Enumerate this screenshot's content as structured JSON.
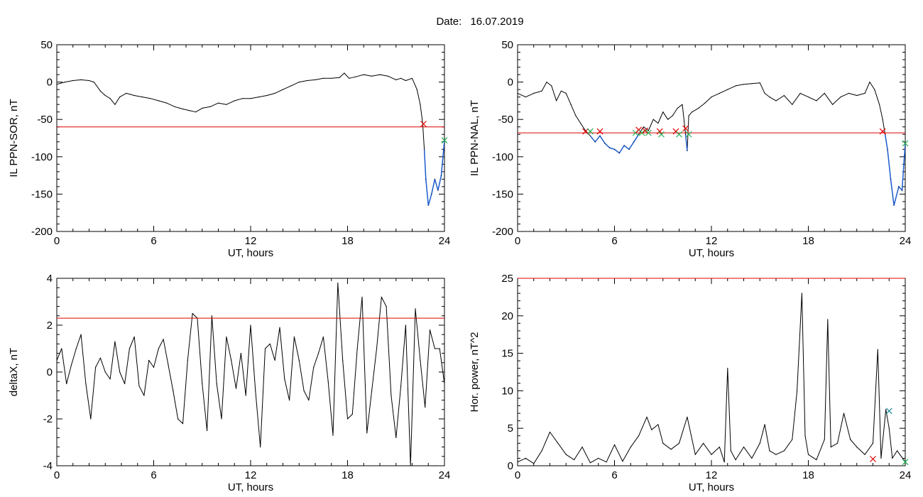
{
  "figure": {
    "title_prefix": "Date:",
    "date": "16.07.2019"
  },
  "colors": {
    "trace": "#000000",
    "threshold": "#e00000",
    "below_threshold": "#1f5fd0",
    "marker_red": "#e00000",
    "marker_green": "#20b050",
    "marker_teal": "#2090a0"
  },
  "chart_data": [
    {
      "id": "ppn_sor",
      "type": "line",
      "title": "",
      "xlabel": "UT, hours",
      "ylabel": "IL PPN-SOR, nT",
      "xlim": [
        0,
        24
      ],
      "ylim": [
        -200,
        50
      ],
      "xticks": [
        0,
        6,
        12,
        18,
        24
      ],
      "yticks": [
        -200,
        -150,
        -100,
        -50,
        0,
        50
      ],
      "threshold": -60,
      "series": [
        {
          "x": [
            0,
            0.5,
            1,
            1.5,
            2,
            2.3,
            2.7,
            3.0,
            3.3,
            3.6,
            3.9,
            4.3,
            4.8,
            5.3,
            5.8,
            6.3,
            6.8,
            7.3,
            7.8,
            8.2,
            8.6,
            9.0,
            9.5,
            10.0,
            10.5,
            11.0,
            11.5,
            12.0,
            12.5,
            13.0,
            13.5,
            14.0,
            14.5,
            15.0,
            15.5,
            16.0,
            16.5,
            17.0,
            17.5,
            17.8,
            18.1,
            18.5,
            19.0,
            19.5,
            20.0,
            20.5,
            21.0,
            21.3,
            21.6,
            22.0,
            22.3,
            22.5,
            22.65,
            22.75,
            22.85,
            23.0,
            23.2,
            23.4,
            23.6,
            23.8,
            24.0
          ],
          "y": [
            -3,
            0,
            2,
            3,
            2,
            0,
            -12,
            -18,
            -22,
            -30,
            -20,
            -15,
            -18,
            -20,
            -22,
            -25,
            -28,
            -33,
            -36,
            -38,
            -40,
            -35,
            -33,
            -28,
            -30,
            -25,
            -22,
            -22,
            -20,
            -18,
            -15,
            -10,
            -5,
            0,
            2,
            3,
            5,
            5,
            6,
            12,
            5,
            7,
            10,
            8,
            10,
            8,
            3,
            5,
            2,
            5,
            -10,
            -30,
            -55,
            -90,
            -130,
            -165,
            -150,
            -130,
            -145,
            -125,
            -78
          ]
        }
      ],
      "crossings": [
        {
          "x": 22.7,
          "y": -56,
          "color": "red"
        },
        {
          "x": 24.0,
          "y": -78,
          "color": "green"
        }
      ]
    },
    {
      "id": "ppn_nal",
      "type": "line",
      "title": "",
      "xlabel": "UT, hours",
      "ylabel": "IL PPN-NAL, nT",
      "xlim": [
        0,
        24
      ],
      "ylim": [
        -200,
        50
      ],
      "xticks": [
        0,
        6,
        12,
        18,
        24
      ],
      "yticks": [
        -200,
        -150,
        -100,
        -50,
        0,
        50
      ],
      "threshold": -68,
      "series": [
        {
          "x": [
            0,
            0.5,
            1.0,
            1.5,
            1.8,
            2.1,
            2.4,
            2.7,
            3.0,
            3.3,
            3.6,
            3.9,
            4.2,
            4.5,
            4.8,
            5.1,
            5.4,
            5.7,
            6.0,
            6.3,
            6.6,
            6.9,
            7.2,
            7.5,
            7.8,
            8.1,
            8.4,
            8.7,
            9.0,
            9.3,
            9.6,
            9.9,
            10.2,
            10.4,
            10.5,
            10.6,
            10.8,
            11.2,
            11.6,
            12.0,
            12.5,
            13.0,
            13.5,
            14.0,
            14.5,
            15.0,
            15.3,
            15.6,
            16.0,
            16.5,
            17.0,
            17.5,
            18.0,
            18.5,
            19.0,
            19.5,
            20.0,
            20.5,
            21.0,
            21.5,
            21.8,
            22.1,
            22.4,
            22.6,
            22.75,
            22.9,
            23.1,
            23.3,
            23.6,
            23.8,
            24.0
          ],
          "y": [
            -15,
            -20,
            -15,
            -12,
            0,
            -5,
            -25,
            -12,
            -15,
            -30,
            -45,
            -55,
            -65,
            -72,
            -80,
            -72,
            -82,
            -88,
            -90,
            -95,
            -85,
            -90,
            -80,
            -70,
            -60,
            -65,
            -50,
            -55,
            -40,
            -50,
            -45,
            -35,
            -30,
            -70,
            -92,
            -45,
            -40,
            -35,
            -28,
            -20,
            -15,
            -10,
            -5,
            -3,
            -2,
            -1,
            -15,
            -20,
            -25,
            -18,
            -30,
            -15,
            -20,
            -25,
            -15,
            -30,
            -20,
            -15,
            -18,
            -15,
            0,
            -10,
            -30,
            -50,
            -70,
            -90,
            -130,
            -165,
            -140,
            -145,
            -82
          ]
        }
      ],
      "crossings": [
        {
          "x": 4.2,
          "y": -66,
          "color": "red"
        },
        {
          "x": 4.5,
          "y": -66,
          "color": "green"
        },
        {
          "x": 5.1,
          "y": -66,
          "color": "red"
        },
        {
          "x": 7.3,
          "y": -68,
          "color": "green"
        },
        {
          "x": 7.5,
          "y": -64,
          "color": "red"
        },
        {
          "x": 7.7,
          "y": -68,
          "color": "green"
        },
        {
          "x": 7.9,
          "y": -65,
          "color": "red"
        },
        {
          "x": 8.1,
          "y": -68,
          "color": "green"
        },
        {
          "x": 8.8,
          "y": -66,
          "color": "red"
        },
        {
          "x": 8.9,
          "y": -70,
          "color": "green"
        },
        {
          "x": 9.8,
          "y": -66,
          "color": "red"
        },
        {
          "x": 10.0,
          "y": -70,
          "color": "green"
        },
        {
          "x": 10.4,
          "y": -62,
          "color": "red"
        },
        {
          "x": 10.6,
          "y": -70,
          "color": "green"
        },
        {
          "x": 22.6,
          "y": -66,
          "color": "red"
        },
        {
          "x": 24.0,
          "y": -82,
          "color": "green"
        }
      ]
    },
    {
      "id": "deltax",
      "type": "line",
      "title": "",
      "xlabel": "UT, hours",
      "ylabel": "deltaX, nT",
      "xlim": [
        0,
        24
      ],
      "ylim": [
        -4,
        4
      ],
      "xticks": [
        0,
        6,
        12,
        18,
        24
      ],
      "yticks": [
        -4,
        -2,
        0,
        2,
        4
      ],
      "threshold": 2.3,
      "series": [
        {
          "x": [
            0,
            0.3,
            0.6,
            0.9,
            1.2,
            1.5,
            1.8,
            2.1,
            2.4,
            2.7,
            3.0,
            3.3,
            3.6,
            3.9,
            4.2,
            4.5,
            4.8,
            5.1,
            5.4,
            5.7,
            6.0,
            6.3,
            6.6,
            6.9,
            7.2,
            7.5,
            7.8,
            8.1,
            8.4,
            8.7,
            9.0,
            9.3,
            9.6,
            9.9,
            10.2,
            10.5,
            10.8,
            11.1,
            11.4,
            11.7,
            12.0,
            12.3,
            12.6,
            12.9,
            13.2,
            13.5,
            13.8,
            14.1,
            14.4,
            14.7,
            15.0,
            15.3,
            15.6,
            15.9,
            16.2,
            16.5,
            16.8,
            17.1,
            17.4,
            17.7,
            18.0,
            18.3,
            18.6,
            18.9,
            19.2,
            19.5,
            19.8,
            20.1,
            20.4,
            20.7,
            21.0,
            21.3,
            21.6,
            21.9,
            22.2,
            22.5,
            22.8,
            23.1,
            23.4,
            23.7,
            24.0
          ],
          "y": [
            0.5,
            1.0,
            -0.5,
            0.3,
            1.0,
            1.6,
            -0.5,
            -2.0,
            0.2,
            0.6,
            0.0,
            -0.3,
            1.3,
            0.0,
            -0.5,
            1.0,
            1.5,
            -0.6,
            -1.0,
            0.5,
            0.2,
            1.0,
            1.4,
            0.3,
            -0.8,
            -2.0,
            -2.2,
            0.5,
            2.5,
            2.3,
            -0.5,
            -2.5,
            2.4,
            -0.5,
            -2.0,
            1.5,
            0.5,
            -0.7,
            0.8,
            -1.0,
            2.0,
            -0.8,
            -3.2,
            1.0,
            1.2,
            0.5,
            1.9,
            -0.3,
            -1.2,
            1.5,
            0.5,
            -0.8,
            -1.2,
            0.2,
            0.8,
            1.5,
            -0.4,
            -2.7,
            3.8,
            0.5,
            -2.0,
            -1.8,
            1.0,
            3.2,
            -2.6,
            -0.8,
            1.0,
            3.2,
            2.8,
            -1.0,
            -2.8,
            -0.6,
            2.0,
            -4.0,
            2.7,
            0.5,
            -1.5,
            1.8,
            1.0,
            1.0,
            -0.5
          ]
        }
      ],
      "crossings": []
    },
    {
      "id": "hor_power",
      "type": "line",
      "title": "",
      "xlabel": "UT, hours",
      "ylabel": "Hor. power, nT^2",
      "xlim": [
        0,
        24
      ],
      "ylim": [
        0,
        25
      ],
      "xticks": [
        0,
        6,
        12,
        18,
        24
      ],
      "yticks": [
        0,
        5,
        10,
        15,
        20,
        25
      ],
      "threshold": 25,
      "series": [
        {
          "x": [
            0,
            0.5,
            1.0,
            1.5,
            2.0,
            2.5,
            3.0,
            3.5,
            4.0,
            4.5,
            5.0,
            5.5,
            6.0,
            6.5,
            7.0,
            7.5,
            8.0,
            8.3,
            8.7,
            9.0,
            9.5,
            10.0,
            10.5,
            11.0,
            11.5,
            12.0,
            12.5,
            12.8,
            13.0,
            13.2,
            13.5,
            14.0,
            14.5,
            15.0,
            15.3,
            15.6,
            16.0,
            16.5,
            17.0,
            17.3,
            17.6,
            17.8,
            18.0,
            18.5,
            19.0,
            19.2,
            19.4,
            19.8,
            20.2,
            20.6,
            21.0,
            21.5,
            22.0,
            22.3,
            22.5,
            22.8,
            23.0,
            23.2,
            23.5,
            24.0
          ],
          "y": [
            0.5,
            1.0,
            0.3,
            2.0,
            4.5,
            3.0,
            1.5,
            0.8,
            2.5,
            0.4,
            1.0,
            0.5,
            2.8,
            0.6,
            2.5,
            4.0,
            6.5,
            4.8,
            5.5,
            3.0,
            2.2,
            3.0,
            6.5,
            1.5,
            3.0,
            1.5,
            2.5,
            0.5,
            13.0,
            2.0,
            0.8,
            2.5,
            1.0,
            3.0,
            5.5,
            2.0,
            1.5,
            2.0,
            3.5,
            10.0,
            23.0,
            4.0,
            1.5,
            0.8,
            3.5,
            19.5,
            2.5,
            3.0,
            7.0,
            3.5,
            2.5,
            1.5,
            3.0,
            15.5,
            1.0,
            7.5,
            5.0,
            1.0,
            2.0,
            0.5
          ]
        }
      ],
      "crossings": [
        {
          "x": 22.0,
          "y": 0.9,
          "color": "red"
        },
        {
          "x": 23.0,
          "y": 7.3,
          "color": "teal"
        },
        {
          "x": 24.0,
          "y": 0.5,
          "color": "green"
        }
      ]
    }
  ]
}
